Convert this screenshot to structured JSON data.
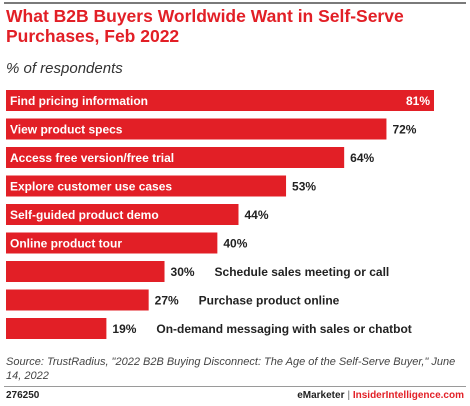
{
  "chart_data": {
    "type": "bar",
    "orientation": "horizontal",
    "title": "What B2B Buyers Worldwide Want in Self-Serve Purchases, Feb 2022",
    "subtitle": "% of respondents",
    "categories": [
      "Find pricing information",
      "View product specs",
      "Access free version/free trial",
      "Explore customer use cases",
      "Self-guided product demo",
      "Online product tour",
      "Schedule sales meeting or call",
      "Purchase product online",
      "On-demand messaging with sales or chatbot"
    ],
    "values": [
      81,
      72,
      64,
      53,
      44,
      40,
      30,
      27,
      19
    ],
    "value_labels": [
      "81%",
      "72%",
      "64%",
      "53%",
      "44%",
      "40%",
      "30%",
      "27%",
      "19%"
    ],
    "xlim": [
      0,
      81
    ],
    "grid": false,
    "color": "#e21f26"
  },
  "source": "Source: TrustRadius, \"2022 B2B Buying Disconnect: The Age of the Self-Serve Buyer,\" June 14, 2022",
  "footer": {
    "chart_id": "276250",
    "brand_a": "eMarketer",
    "separator": "|",
    "brand_b": "InsiderIntelligence.com"
  }
}
